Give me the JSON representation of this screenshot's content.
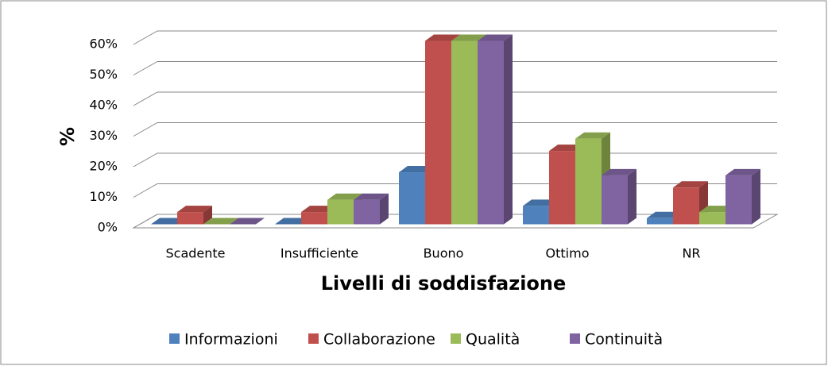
{
  "chart_data": {
    "type": "bar3d",
    "categories": [
      "Scadente",
      "Insufficiente",
      "Buono",
      "Ottimo",
      "NR"
    ],
    "series": [
      {
        "name": "Informazioni",
        "color": "#4f81bd",
        "values": [
          0,
          0,
          17,
          6,
          2
        ]
      },
      {
        "name": "Collaborazione",
        "color": "#c0504d",
        "values": [
          4,
          4,
          60,
          24,
          12
        ]
      },
      {
        "name": "Qualità",
        "color": "#9bbb59",
        "values": [
          0,
          8,
          60,
          28,
          4
        ]
      },
      {
        "name": "Continuità",
        "color": "#8064a2",
        "values": [
          0,
          8,
          60,
          16,
          16
        ]
      }
    ],
    "ylabel": "%",
    "xlabel": "Livelli di soddisfazione",
    "ylim": [
      0,
      60
    ],
    "yticks": [
      {
        "value": 0,
        "label": "0%"
      },
      {
        "value": 10,
        "label": "10%"
      },
      {
        "value": 20,
        "label": "20%"
      },
      {
        "value": 30,
        "label": "30%"
      },
      {
        "value": 40,
        "label": "40%"
      },
      {
        "value": 50,
        "label": "50%"
      },
      {
        "value": 60,
        "label": "60%"
      }
    ],
    "grid": true,
    "legend": "bottom"
  }
}
